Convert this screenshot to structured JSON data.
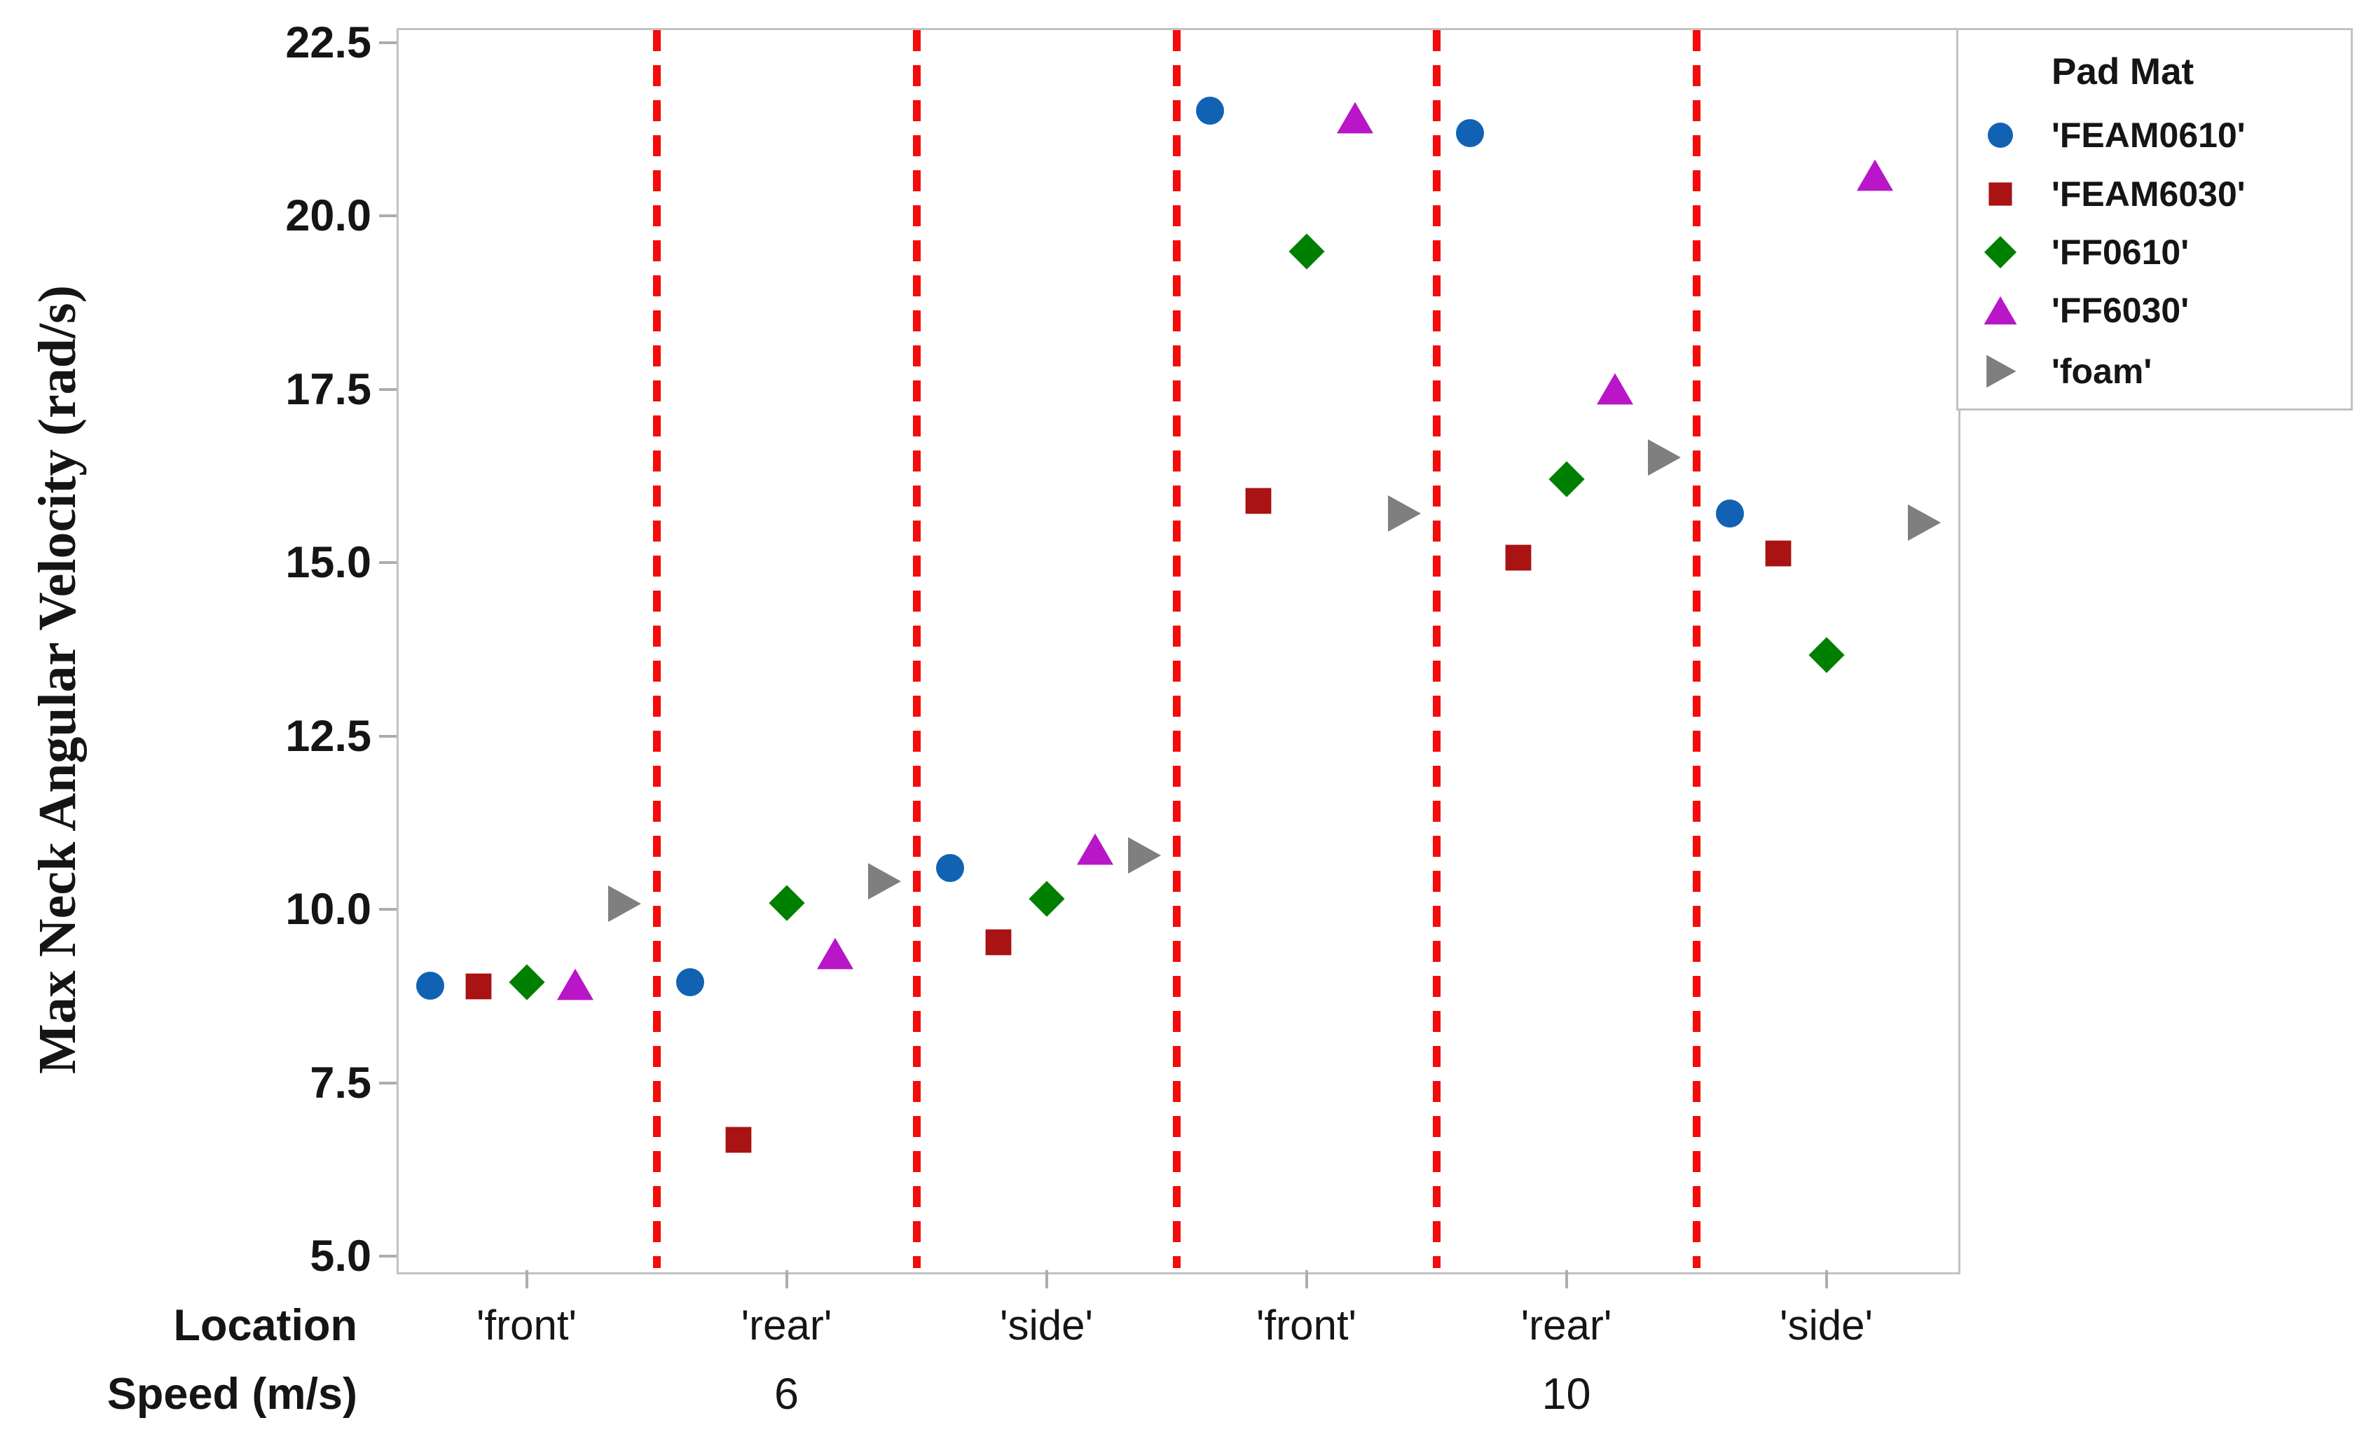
{
  "colors": {
    "background": "#FFFFFF",
    "axis_border": "#C2C2C2",
    "tick_stub": "#ADADAD",
    "separator_red": "#F40B0B",
    "text": "#151515",
    "series_blue": "#1162B2",
    "series_dark_red": "#A91313",
    "series_green": "#008000",
    "series_magenta": "#B816C8",
    "series_gray": "#7F7F7F"
  },
  "y_axis": {
    "title": "Max Neck Angular Velocity (rad/s)",
    "ticks": [
      "22.5",
      "20.0",
      "17.5",
      "15.0",
      "12.5",
      "10.0",
      "7.5",
      "5.0"
    ],
    "tick_values": [
      22.5,
      20.0,
      17.5,
      15.0,
      12.5,
      10.0,
      7.5,
      5.0
    ]
  },
  "x_axis": {
    "location_row_label": "Location",
    "speed_row_label": "Speed (m/s)",
    "groups": [
      {
        "location": "'front'",
        "speed": "6"
      },
      {
        "location": "'rear'",
        "speed": "6"
      },
      {
        "location": "'side'",
        "speed": "6"
      },
      {
        "location": "'front'",
        "speed": "10"
      },
      {
        "location": "'rear'",
        "speed": "10"
      },
      {
        "location": "'side'",
        "speed": "10"
      }
    ],
    "speed_labels": [
      "6",
      "10"
    ]
  },
  "legend": {
    "title": "Pad Mat",
    "items": [
      {
        "label": "'FEAM0610'",
        "marker": "circle",
        "color": "#1162B2"
      },
      {
        "label": "'FEAM6030'",
        "marker": "square",
        "color": "#A91313"
      },
      {
        "label": "'FF0610'",
        "marker": "diamond",
        "color": "#008000"
      },
      {
        "label": "'FF6030'",
        "marker": "triangle-up",
        "color": "#B816C8"
      },
      {
        "label": "'foam'",
        "marker": "triangle-right",
        "color": "#7F7F7F"
      }
    ]
  },
  "chart_data": {
    "type": "scatter",
    "title": "",
    "xlabel_rows": [
      "Location",
      "Speed (m/s)"
    ],
    "ylabel": "Max Neck Angular Velocity (rad/s)",
    "ylim": [
      5.0,
      22.5
    ],
    "ytick_step": 2.5,
    "grid": false,
    "legend_position": "upper-right-outside",
    "legend_title": "Pad Mat",
    "categories": [
      "6 'front'",
      "6 'rear'",
      "6 'side'",
      "10 'front'",
      "10 'rear'",
      "10 'side'"
    ],
    "group_separators": "vertical red dashed lines between the six location/speed groups",
    "series": [
      {
        "name": "'FEAM0610'",
        "marker": "circle",
        "color": "#1162B2",
        "values": [
          8.9,
          8.95,
          10.6,
          21.52,
          21.19,
          15.71
        ]
      },
      {
        "name": "'FEAM6030'",
        "marker": "square",
        "color": "#A91313",
        "values": [
          8.89,
          6.68,
          9.53,
          15.89,
          15.07,
          15.13
        ]
      },
      {
        "name": "'FF0610'",
        "marker": "diamond",
        "color": "#008000",
        "values": [
          8.95,
          10.09,
          10.15,
          19.48,
          16.2,
          13.67
        ]
      },
      {
        "name": "'FF6030'",
        "marker": "triangle-up",
        "color": "#B816C8",
        "values": [
          8.92,
          9.36,
          10.87,
          21.41,
          17.51,
          20.59
        ]
      },
      {
        "name": "'foam'",
        "marker": "triangle-right",
        "color": "#7F7F7F",
        "values": [
          10.08,
          10.4,
          10.78,
          15.71,
          16.52,
          15.58
        ]
      }
    ]
  }
}
